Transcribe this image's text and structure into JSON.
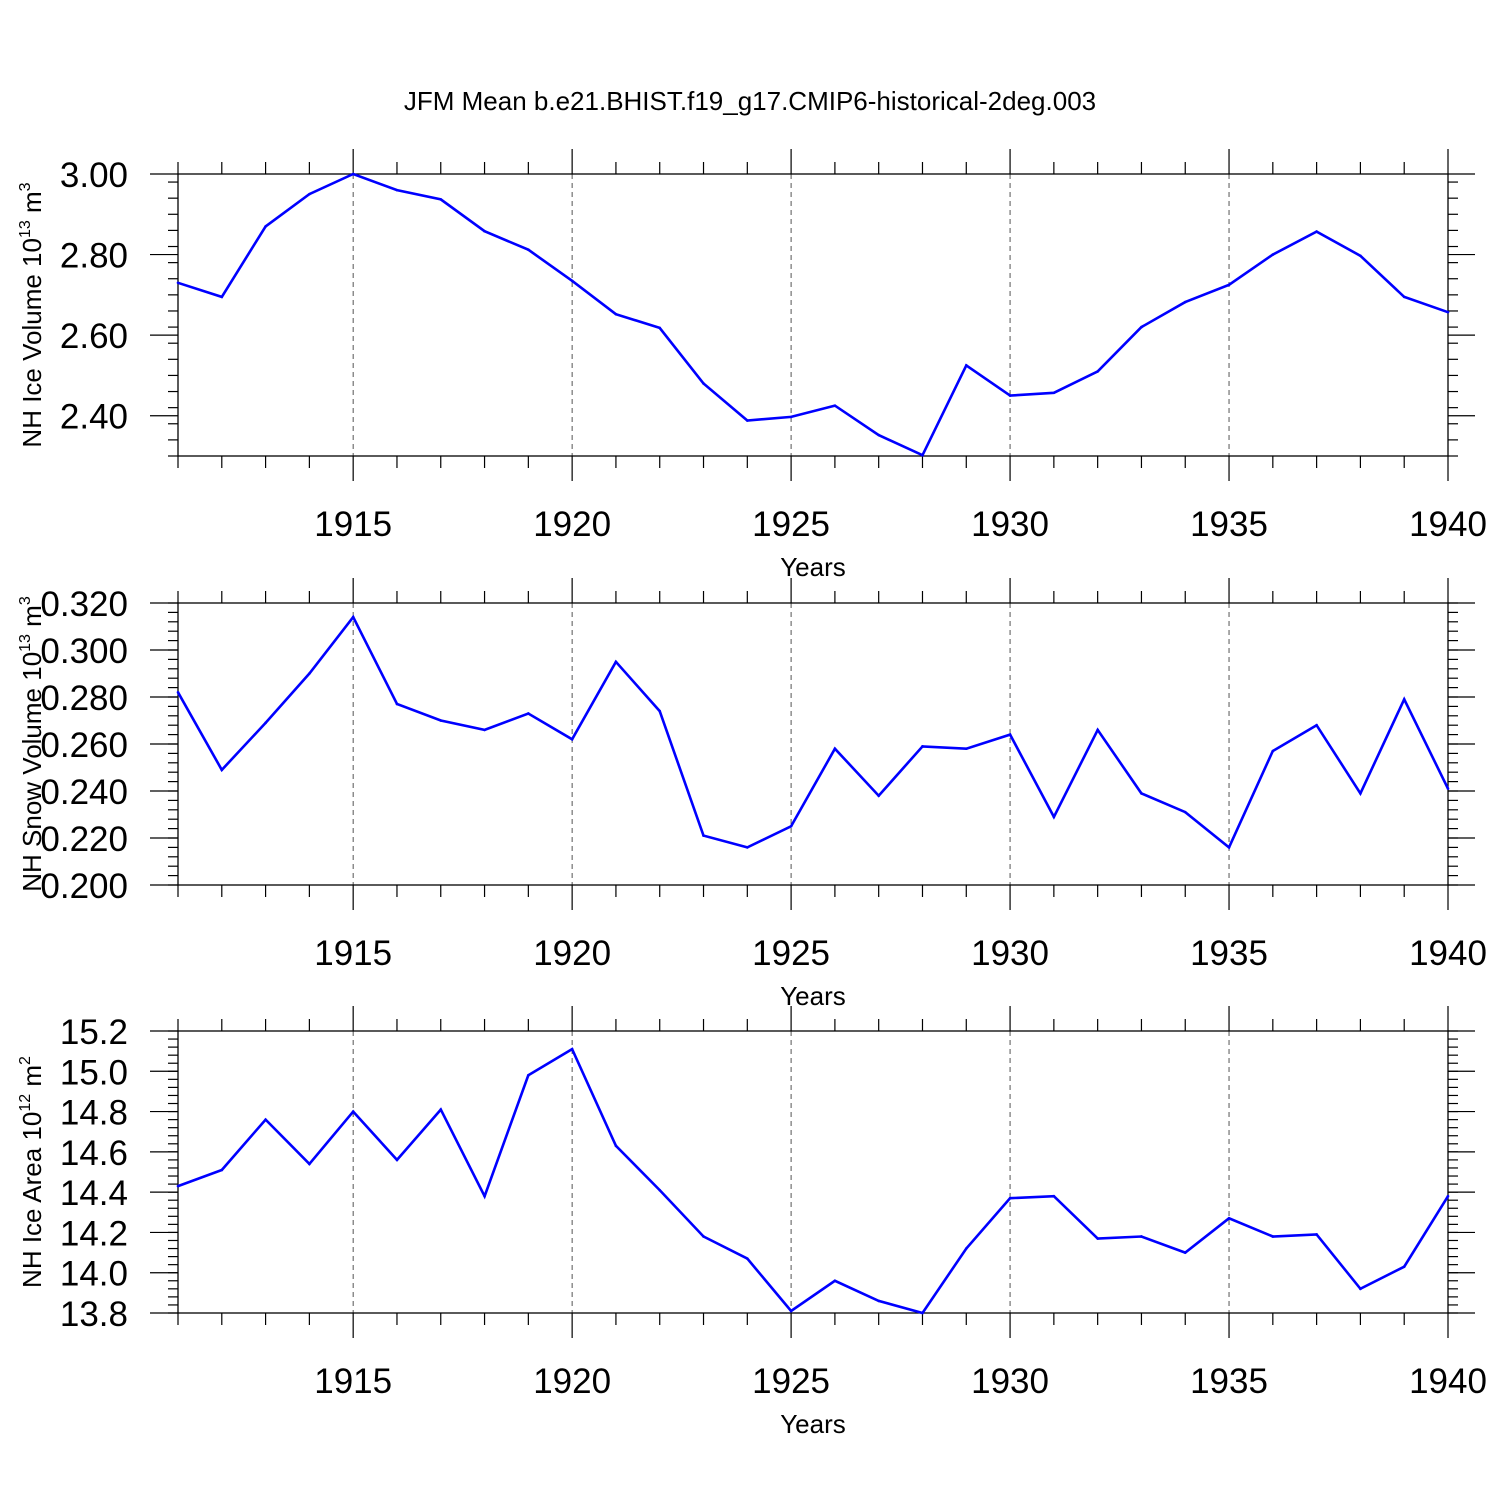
{
  "figure": {
    "title": "JFM Mean b.e21.BHIST.f19_g17.CMIP6-historical-2deg.003",
    "line_color": "#0000ff"
  },
  "chart_data": [
    {
      "type": "line",
      "xlabel": "Years",
      "ylabel_main": "NH Ice Volume 10",
      "ylabel_sup1": "13",
      "ylabel_mid": " m",
      "ylabel_sup2": "3",
      "xlim": [
        1911,
        1940
      ],
      "ylim": [
        2.3,
        3.0
      ],
      "x_ticks": [
        1915,
        1920,
        1925,
        1930,
        1935,
        1940
      ],
      "x_tick_labels": [
        "1915",
        "1920",
        "1925",
        "1930",
        "1935",
        "1940"
      ],
      "y_ticks": [
        2.4,
        2.6,
        2.8,
        3.0
      ],
      "y_tick_labels": [
        "2.40",
        "2.60",
        "2.80",
        "3.00"
      ],
      "grid": "vertical dashed at major x ticks",
      "x": [
        1911,
        1912,
        1913,
        1914,
        1915,
        1916,
        1917,
        1918,
        1919,
        1920,
        1921,
        1922,
        1923,
        1924,
        1925,
        1926,
        1927,
        1928,
        1929,
        1930,
        1931,
        1932,
        1933,
        1934,
        1935,
        1936,
        1937,
        1938,
        1939,
        1940
      ],
      "values": [
        2.73,
        2.695,
        2.87,
        2.95,
        3.0,
        2.96,
        2.937,
        2.858,
        2.812,
        2.735,
        2.652,
        2.618,
        2.48,
        2.388,
        2.397,
        2.425,
        2.352,
        2.302,
        2.525,
        2.45,
        2.457,
        2.51,
        2.62,
        2.682,
        2.725,
        2.8,
        2.857,
        2.797,
        2.695,
        2.657
      ]
    },
    {
      "type": "line",
      "xlabel": "Years",
      "ylabel_main": "NH Snow Volume 10",
      "ylabel_sup1": "13",
      "ylabel_mid": " m",
      "ylabel_sup2": "3",
      "xlim": [
        1911,
        1940
      ],
      "ylim": [
        0.2,
        0.32
      ],
      "x_ticks": [
        1915,
        1920,
        1925,
        1930,
        1935,
        1940
      ],
      "x_tick_labels": [
        "1915",
        "1920",
        "1925",
        "1930",
        "1935",
        "1940"
      ],
      "y_ticks": [
        0.2,
        0.22,
        0.24,
        0.26,
        0.28,
        0.3,
        0.32
      ],
      "y_tick_labels": [
        "0.200",
        "0.220",
        "0.240",
        "0.260",
        "0.280",
        "0.300",
        "0.320"
      ],
      "grid": "vertical dashed at major x ticks",
      "x": [
        1911,
        1912,
        1913,
        1914,
        1915,
        1916,
        1917,
        1918,
        1919,
        1920,
        1921,
        1922,
        1923,
        1924,
        1925,
        1926,
        1927,
        1928,
        1929,
        1930,
        1931,
        1932,
        1933,
        1934,
        1935,
        1936,
        1937,
        1938,
        1939,
        1940
      ],
      "values": [
        0.282,
        0.249,
        0.269,
        0.29,
        0.314,
        0.277,
        0.27,
        0.266,
        0.273,
        0.262,
        0.295,
        0.274,
        0.221,
        0.216,
        0.225,
        0.258,
        0.238,
        0.259,
        0.258,
        0.264,
        0.229,
        0.266,
        0.239,
        0.231,
        0.216,
        0.257,
        0.268,
        0.239,
        0.279,
        0.241
      ]
    },
    {
      "type": "line",
      "xlabel": "Years",
      "ylabel_main": "NH Ice Area 10",
      "ylabel_sup1": "12",
      "ylabel_mid": " m",
      "ylabel_sup2": "2",
      "xlim": [
        1911,
        1940
      ],
      "ylim": [
        13.8,
        15.2
      ],
      "x_ticks": [
        1915,
        1920,
        1925,
        1930,
        1935,
        1940
      ],
      "x_tick_labels": [
        "1915",
        "1920",
        "1925",
        "1930",
        "1935",
        "1940"
      ],
      "y_ticks": [
        13.8,
        14.0,
        14.2,
        14.4,
        14.6,
        14.8,
        15.0,
        15.2
      ],
      "y_tick_labels": [
        "13.8",
        "14.0",
        "14.2",
        "14.4",
        "14.6",
        "14.8",
        "15.0",
        "15.2"
      ],
      "grid": "vertical dashed at major x ticks",
      "x": [
        1911,
        1912,
        1913,
        1914,
        1915,
        1916,
        1917,
        1918,
        1919,
        1920,
        1921,
        1922,
        1923,
        1924,
        1925,
        1926,
        1927,
        1928,
        1929,
        1930,
        1931,
        1932,
        1933,
        1934,
        1935,
        1936,
        1937,
        1938,
        1939,
        1940
      ],
      "values": [
        14.43,
        14.51,
        14.76,
        14.54,
        14.8,
        14.56,
        14.81,
        14.38,
        14.98,
        15.11,
        14.63,
        14.41,
        14.18,
        14.07,
        13.81,
        13.96,
        13.86,
        13.8,
        14.12,
        14.37,
        14.38,
        14.17,
        14.18,
        14.1,
        14.27,
        14.18,
        14.19,
        13.92,
        14.03,
        14.38
      ]
    }
  ]
}
